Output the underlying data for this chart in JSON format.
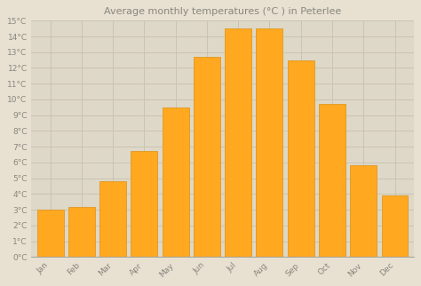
{
  "months": [
    "Jan",
    "Feb",
    "Mar",
    "Apr",
    "May",
    "Jun",
    "Jul",
    "Aug",
    "Sep",
    "Oct",
    "Nov",
    "Dec"
  ],
  "temperatures": [
    3.0,
    3.2,
    4.8,
    6.7,
    9.5,
    12.7,
    14.5,
    14.5,
    12.5,
    9.7,
    5.8,
    3.9
  ],
  "title": "Average monthly temperatures (°C ) in Peterlee",
  "ylim": [
    0,
    15
  ],
  "ytick_values": [
    0,
    1,
    2,
    3,
    4,
    5,
    6,
    7,
    8,
    9,
    10,
    11,
    12,
    13,
    14,
    15
  ],
  "background_color": "#e8e0d0",
  "plot_bg_color": "#ddd8c8",
  "grid_color": "#c8c0b0",
  "title_fontsize": 8,
  "tick_fontsize": 6.5,
  "label_color": "#888880",
  "bar_color_face": "#FFA820",
  "bar_color_edge": "#E09010",
  "bar_width": 0.85
}
